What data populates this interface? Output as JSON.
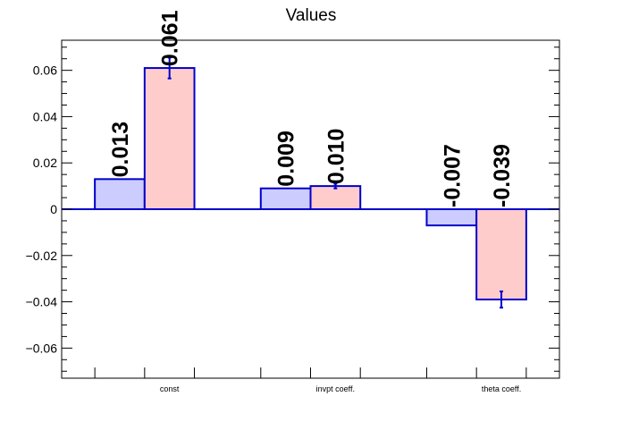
{
  "chart_data": {
    "type": "bar",
    "title": "Values",
    "xlabel": "",
    "ylabel": "",
    "categories": [
      "const",
      "invpt coeff.",
      "theta coeff."
    ],
    "series": [
      {
        "values": [
          0.013,
          0.009,
          -0.007
        ],
        "value_labels": [
          "0.013",
          "0.009",
          "-0.007"
        ],
        "errors": [
          0.0,
          0.0,
          0.0
        ],
        "fill": "#ccccff",
        "stroke": "#0000cc"
      },
      {
        "values": [
          0.061,
          0.01,
          -0.039
        ],
        "value_labels": [
          "0.061",
          "0.010",
          "-0.039"
        ],
        "errors": [
          0.0045,
          0.001,
          0.0035
        ],
        "fill": "#ffcccc",
        "stroke": "#0000cc"
      }
    ],
    "ylim": [
      -0.073,
      0.073
    ],
    "yticks": [
      -0.06,
      -0.04,
      -0.02,
      0,
      0.02,
      0.04,
      0.06
    ],
    "ytick_labels": [
      "−0.06",
      "−0.04",
      "−0.02",
      "0",
      "0.02",
      "0.04",
      "0.06"
    ],
    "grid": false,
    "legend": "none",
    "zero_line_color": "#0000cc",
    "error_bar_color": "#0000cc"
  }
}
